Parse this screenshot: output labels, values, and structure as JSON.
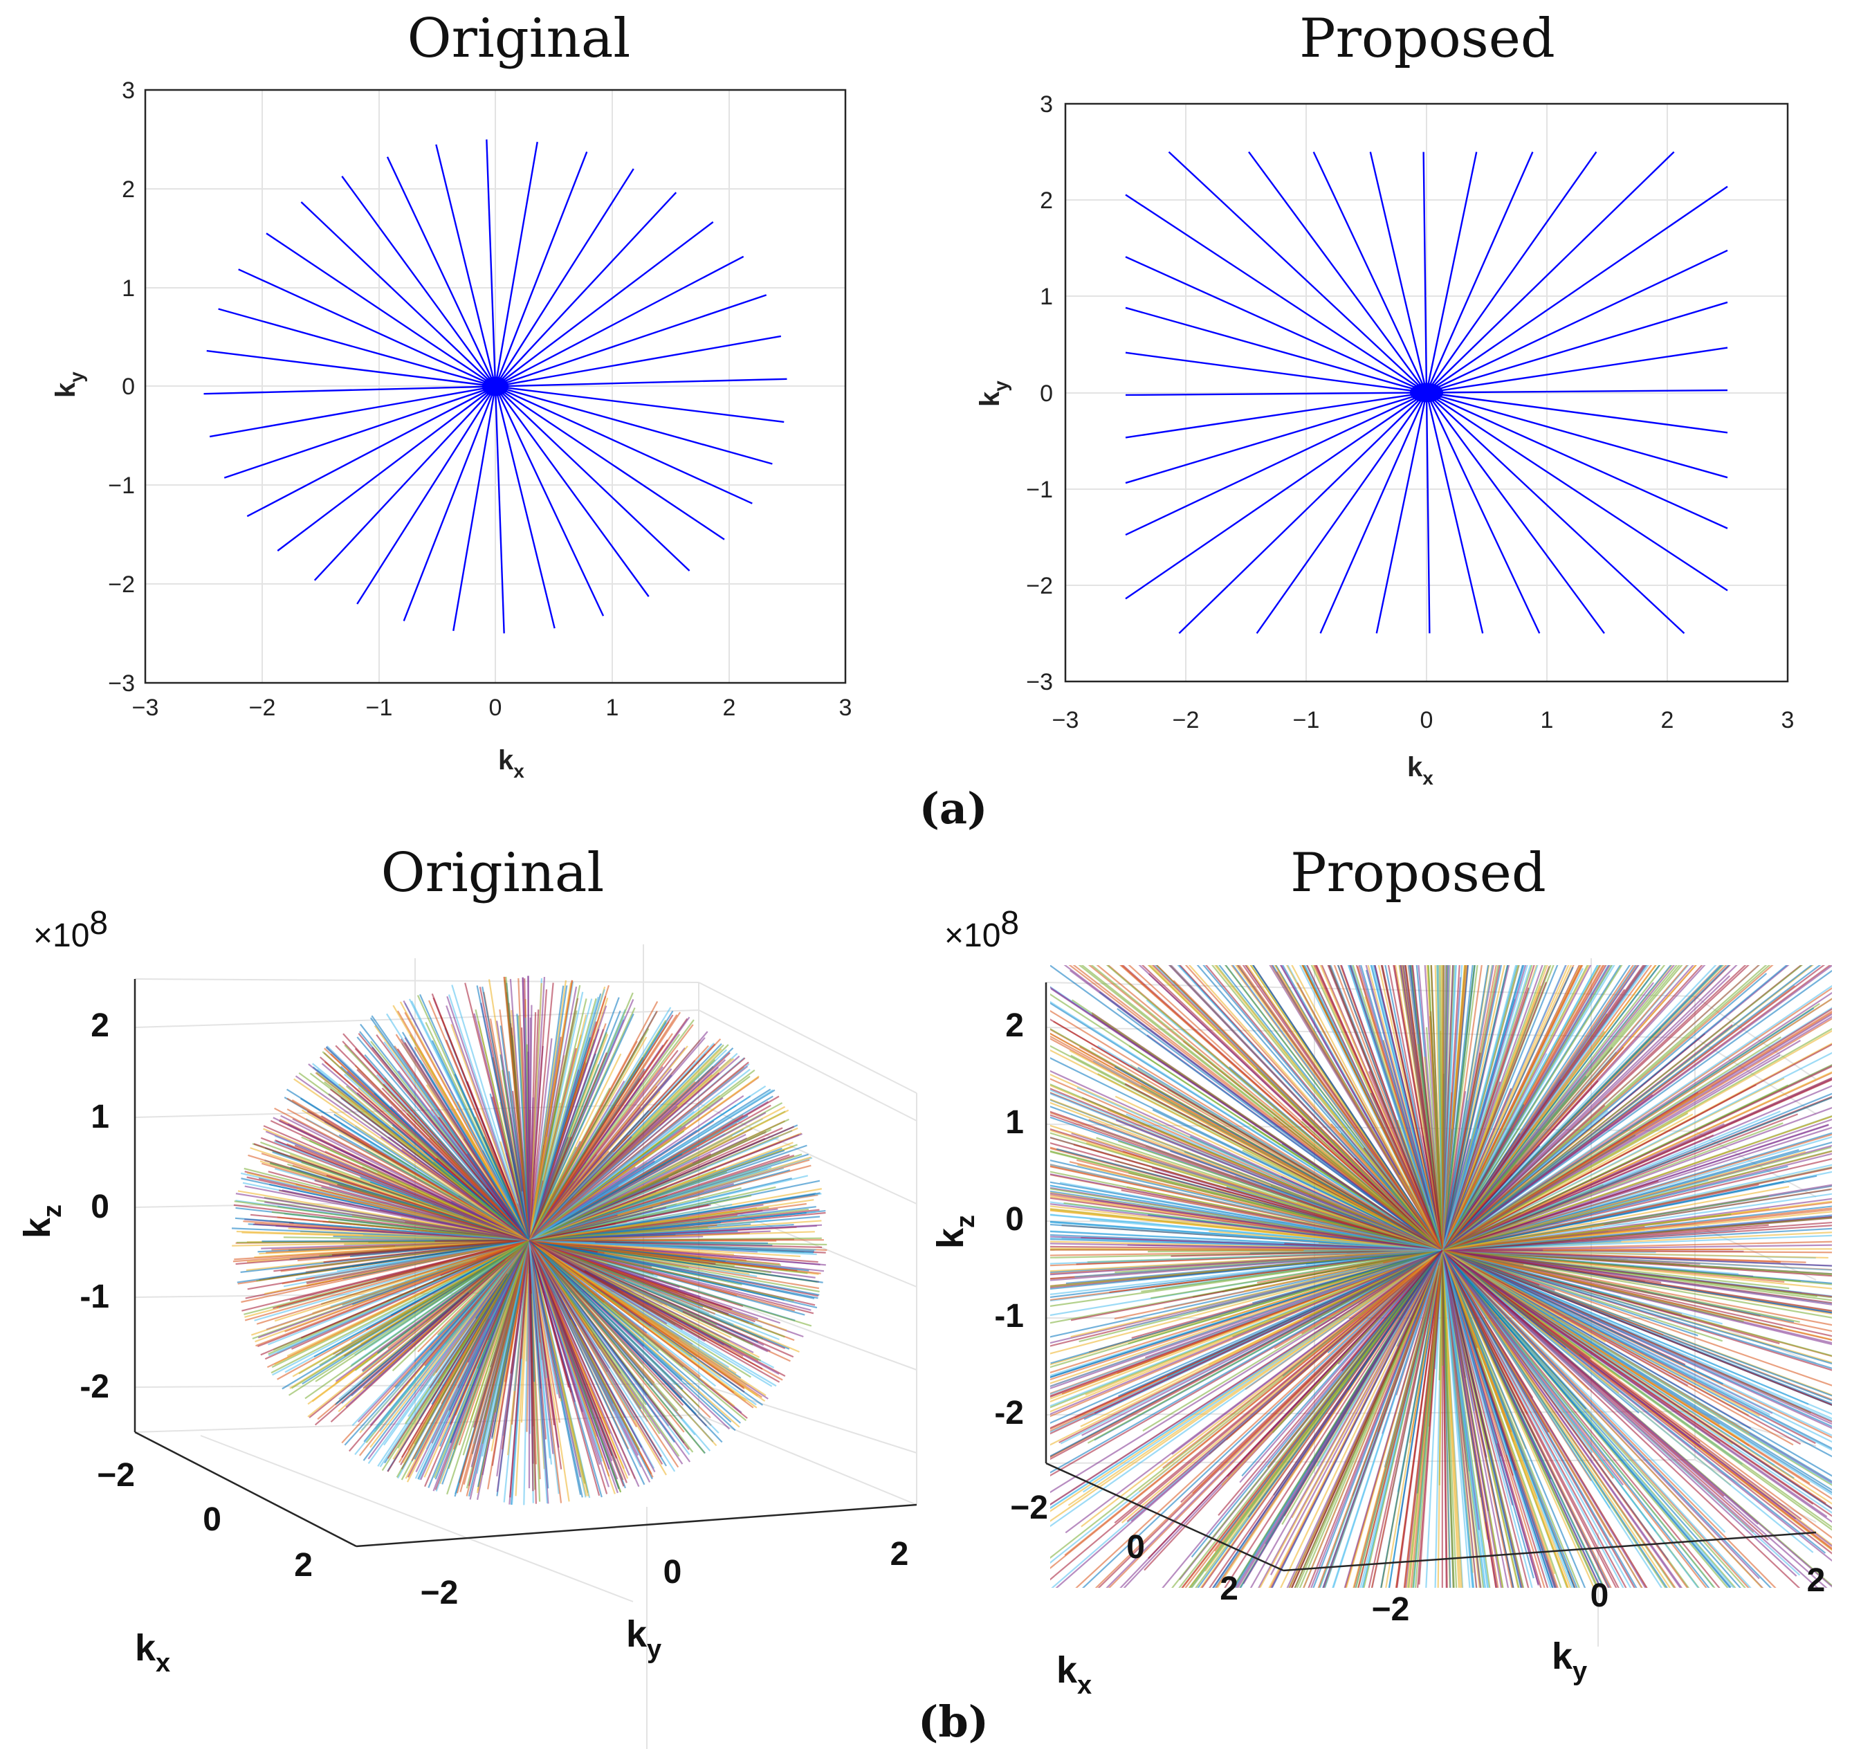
{
  "panel_labels": {
    "a": "(a)",
    "b": "(b)"
  },
  "colors": {
    "spoke_2d": "#0000ff",
    "axis": "#262626",
    "grid": "#e3e3e3",
    "palette_3d": [
      "#0072bd",
      "#d95319",
      "#edb120",
      "#7e2f8e",
      "#77ac30",
      "#4dbeee",
      "#a2142f"
    ]
  },
  "chart_data": [
    {
      "type": "line",
      "panel": "(a)",
      "title": "Original",
      "xlabel": "k",
      "xlabel_sub": "x",
      "ylabel": "k",
      "ylabel_sub": "y",
      "xlim": [
        -3,
        3
      ],
      "ylim": [
        -3,
        3
      ],
      "xticks": [
        "−3",
        "−2",
        "−1",
        "0",
        "1",
        "2",
        "3"
      ],
      "yticks": [
        "−3",
        "−2",
        "−1",
        "0",
        "1",
        "2",
        "3"
      ],
      "grid": true,
      "trajectory": "radial spokes from origin, endpoints on a circle",
      "spoke_count": 36,
      "spoke_radius": 2.5,
      "color": "#0000ff"
    },
    {
      "type": "line",
      "panel": "(a)",
      "title": "Proposed",
      "xlabel": "k",
      "xlabel_sub": "x",
      "ylabel": "k",
      "ylabel_sub": "y",
      "xlim": [
        -3,
        3
      ],
      "ylim": [
        -3,
        3
      ],
      "xticks": [
        "−3",
        "−2",
        "−1",
        "0",
        "1",
        "2",
        "3"
      ],
      "yticks": [
        "−3",
        "−2",
        "−1",
        "0",
        "1",
        "2",
        "3"
      ],
      "grid": true,
      "trajectory": "radial spokes from origin, endpoints on a square",
      "spoke_count": 36,
      "spoke_half_width": 2.5,
      "color": "#0000ff"
    },
    {
      "type": "line",
      "panel": "(b)",
      "title": "Original",
      "multiplier": "×10",
      "multiplier_exp": "8",
      "xlabel": "k",
      "xlabel_sub": "x",
      "ylabel": "k",
      "ylabel_sub": "y",
      "zlabel": "k",
      "zlabel_sub": "z",
      "xticks": [
        "−2",
        "0",
        "2"
      ],
      "yticks": [
        "−2",
        "0",
        "2"
      ],
      "zticks": [
        "2",
        "1",
        "0",
        "-1",
        "-2"
      ],
      "grid": true,
      "trajectory": "3D radial spokes, endpoints on a sphere",
      "spoke_radius": 2.5,
      "line_count": 1400
    },
    {
      "type": "line",
      "panel": "(b)",
      "title": "Proposed",
      "multiplier": "×10",
      "multiplier_exp": "8",
      "xlabel": "k",
      "xlabel_sub": "x",
      "ylabel": "k",
      "ylabel_sub": "y",
      "zlabel": "k",
      "zlabel_sub": "z",
      "xticks": [
        "−2",
        "0",
        "2"
      ],
      "yticks": [
        "−2",
        "0",
        "2"
      ],
      "zticks": [
        "2",
        "1",
        "0",
        "-1",
        "-2"
      ],
      "grid": true,
      "trajectory": "3D radial spokes, endpoints on a cube",
      "spoke_half_width": 2.5,
      "line_count": 1400
    }
  ]
}
